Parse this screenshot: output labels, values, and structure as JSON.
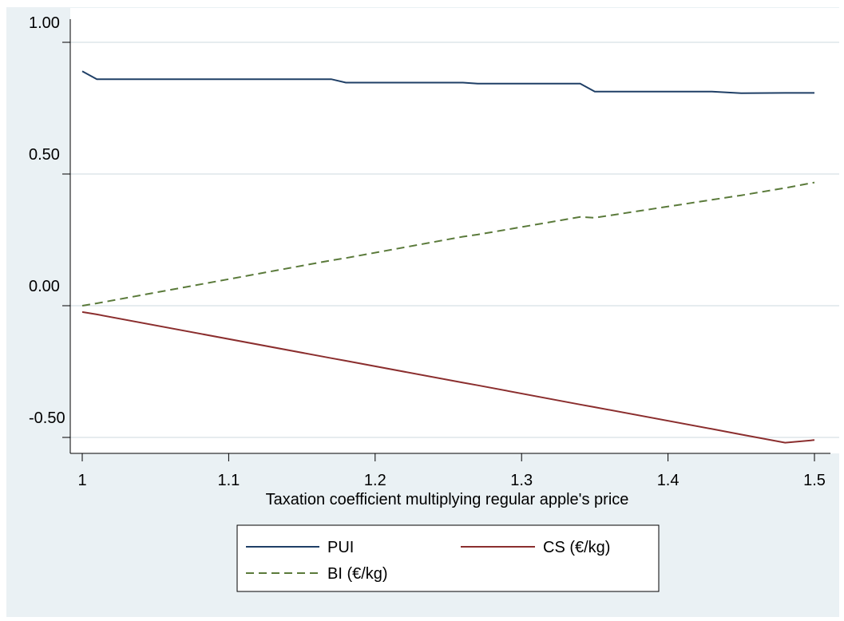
{
  "chart_data": {
    "type": "line",
    "title": "",
    "xlabel": "Taxation coefficient multiplying regular apple's price",
    "ylabel": "",
    "xlim": [
      1.0,
      1.5
    ],
    "ylim": [
      -0.5,
      1.0
    ],
    "x_ticks": [
      "1",
      "1.1",
      "1.2",
      "1.3",
      "1.4",
      "1.5"
    ],
    "y_ticks": [
      "-0.50",
      "0.00",
      "0.50",
      "1.00"
    ],
    "grid": "horizontal",
    "legend_position": "bottom",
    "x": [
      1.0,
      1.01,
      1.17,
      1.18,
      1.26,
      1.27,
      1.34,
      1.35,
      1.43,
      1.45,
      1.48,
      1.5
    ],
    "series": [
      {
        "name": "PUI",
        "color": "#1f3f66",
        "style": "solid",
        "values": [
          0.89,
          0.86,
          0.86,
          0.847,
          0.847,
          0.843,
          0.843,
          0.813,
          0.813,
          0.807,
          0.808,
          0.808
        ]
      },
      {
        "name": "CS (€/kg)",
        "color": "#8b2e2e",
        "style": "solid",
        "values": [
          -0.024,
          -0.033,
          -0.199,
          -0.209,
          -0.292,
          -0.302,
          -0.375,
          -0.385,
          -0.468,
          -0.489,
          -0.52,
          -0.51
        ]
      },
      {
        "name": "BI (€/kg)",
        "color": "#5a7a3a",
        "style": "dashed",
        "values": [
          0.0,
          0.009,
          0.172,
          0.181,
          0.262,
          0.27,
          0.337,
          0.334,
          0.402,
          0.419,
          0.447,
          0.468
        ]
      }
    ],
    "background_color": "#eaf1f4"
  }
}
